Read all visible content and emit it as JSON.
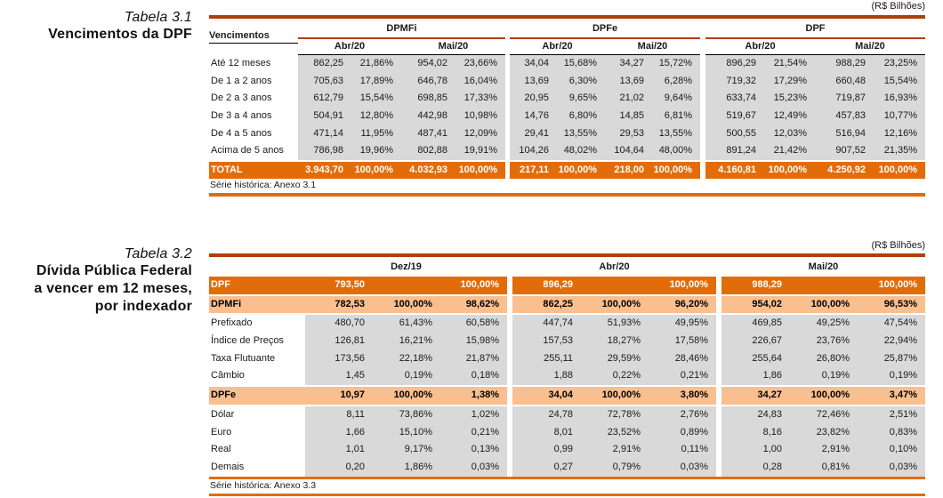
{
  "colors": {
    "rust": "#B23E0C",
    "orange": "#E36C0A",
    "light_orange": "#FABF8F",
    "gray": "#D9D9D9"
  },
  "table1": {
    "caption": "Tabela 3.1",
    "title": "Vencimentos da DPF",
    "unit_label": "(R$ Bilhões)",
    "row_header": "Vencimentos",
    "groups": [
      "DPMFi",
      "DPFe",
      "DPF"
    ],
    "months": [
      "Abr/20",
      "Mai/20",
      "Abr/20",
      "Mai/20",
      "Abr/20",
      "Mai/20"
    ],
    "rows": [
      {
        "label": "Até 12 meses",
        "style": "data",
        "cells": [
          "862,25",
          "21,86%",
          "954,02",
          "23,66%",
          "34,04",
          "15,68%",
          "34,27",
          "15,72%",
          "896,29",
          "21,54%",
          "988,29",
          "23,25%"
        ]
      },
      {
        "label": "De 1 a 2 anos",
        "style": "data",
        "cells": [
          "705,63",
          "17,89%",
          "646,78",
          "16,04%",
          "13,69",
          "6,30%",
          "13,69",
          "6,28%",
          "719,32",
          "17,29%",
          "660,48",
          "15,54%"
        ]
      },
      {
        "label": "De 2 a 3 anos",
        "style": "data",
        "cells": [
          "612,79",
          "15,54%",
          "698,85",
          "17,33%",
          "20,95",
          "9,65%",
          "21,02",
          "9,64%",
          "633,74",
          "15,23%",
          "719,87",
          "16,93%"
        ]
      },
      {
        "label": "De 3 a 4 anos",
        "style": "data",
        "cells": [
          "504,91",
          "12,80%",
          "442,98",
          "10,98%",
          "14,76",
          "6,80%",
          "14,85",
          "6,81%",
          "519,67",
          "12,49%",
          "457,83",
          "10,77%"
        ]
      },
      {
        "label": "De 4 a 5 anos",
        "style": "data",
        "cells": [
          "471,14",
          "11,95%",
          "487,41",
          "12,09%",
          "29,41",
          "13,55%",
          "29,53",
          "13,55%",
          "500,55",
          "12,03%",
          "516,94",
          "12,16%"
        ]
      },
      {
        "label": "Acima de 5 anos",
        "style": "data",
        "cells": [
          "786,98",
          "19,96%",
          "802,88",
          "19,91%",
          "104,26",
          "48,02%",
          "104,64",
          "48,00%",
          "891,24",
          "21,42%",
          "907,52",
          "21,35%"
        ]
      },
      {
        "label": "TOTAL",
        "style": "total",
        "cells": [
          "3.943,70",
          "100,00%",
          "4.032,93",
          "100,00%",
          "217,11",
          "100,00%",
          "218,00",
          "100,00%",
          "4.160,81",
          "100,00%",
          "4.250,92",
          "100,00%"
        ]
      }
    ],
    "footnote": "Série histórica: Anexo 3.1"
  },
  "table2": {
    "caption": "Tabela 3.2",
    "title_lines": [
      "Dívida Pública Federal",
      "a vencer em 12 meses,",
      "por indexador"
    ],
    "unit_label": "(R$ Bilhões)",
    "periods": [
      "Dez/19",
      "Abr/20",
      "Mai/20"
    ],
    "rows": [
      {
        "label": "DPF",
        "style": "main",
        "cells": [
          "793,50",
          "",
          "100,00%",
          "896,29",
          "",
          "100,00%",
          "988,29",
          "",
          "100,00%"
        ]
      },
      {
        "label": "DPMFi",
        "style": "sub",
        "cells": [
          "782,53",
          "100,00%",
          "98,62%",
          "862,25",
          "100,00%",
          "96,20%",
          "954,02",
          "100,00%",
          "96,53%"
        ]
      },
      {
        "label": "Prefixado",
        "style": "data",
        "cells": [
          "480,70",
          "61,43%",
          "60,58%",
          "447,74",
          "51,93%",
          "49,95%",
          "469,85",
          "49,25%",
          "47,54%"
        ]
      },
      {
        "label": "Índice de Preços",
        "style": "data",
        "cells": [
          "126,81",
          "16,21%",
          "15,98%",
          "157,53",
          "18,27%",
          "17,58%",
          "226,67",
          "23,76%",
          "22,94%"
        ]
      },
      {
        "label": "Taxa Flutuante",
        "style": "data",
        "cells": [
          "173,56",
          "22,18%",
          "21,87%",
          "255,11",
          "29,59%",
          "28,46%",
          "255,64",
          "26,80%",
          "25,87%"
        ]
      },
      {
        "label": "Câmbio",
        "style": "data",
        "cells": [
          "1,45",
          "0,19%",
          "0,18%",
          "1,88",
          "0,22%",
          "0,21%",
          "1,86",
          "0,19%",
          "0,19%"
        ]
      },
      {
        "label": "DPFe",
        "style": "sub",
        "cells": [
          "10,97",
          "100,00%",
          "1,38%",
          "34,04",
          "100,00%",
          "3,80%",
          "34,27",
          "100,00%",
          "3,47%"
        ]
      },
      {
        "label": "Dólar",
        "style": "data",
        "cells": [
          "8,11",
          "73,86%",
          "1,02%",
          "24,78",
          "72,78%",
          "2,76%",
          "24,83",
          "72,46%",
          "2,51%"
        ]
      },
      {
        "label": "Euro",
        "style": "data",
        "cells": [
          "1,66",
          "15,10%",
          "0,21%",
          "8,01",
          "23,52%",
          "0,89%",
          "8,16",
          "23,82%",
          "0,83%"
        ]
      },
      {
        "label": "Real",
        "style": "data",
        "cells": [
          "1,01",
          "9,17%",
          "0,13%",
          "0,99",
          "2,91%",
          "0,11%",
          "1,00",
          "2,91%",
          "0,10%"
        ]
      },
      {
        "label": "Demais",
        "style": "data",
        "cells": [
          "0,20",
          "1,86%",
          "0,03%",
          "0,27",
          "0,79%",
          "0,03%",
          "0,28",
          "0,81%",
          "0,03%"
        ]
      }
    ],
    "footnote": "Série histórica: Anexo 3.3"
  }
}
